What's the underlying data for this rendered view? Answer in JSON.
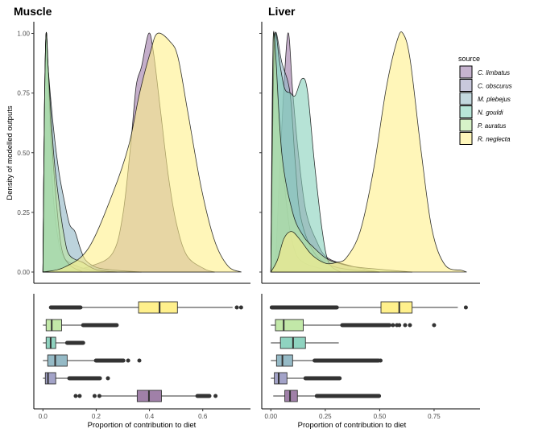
{
  "chart_data": [
    {
      "type": "area",
      "panel": "density",
      "title": "Muscle",
      "ylabel": "Density of modelled outputs",
      "xlim": [
        0,
        0.75
      ],
      "ylim": [
        0,
        1
      ],
      "yticks": [
        "0.00",
        "0.25",
        "0.50",
        "0.75",
        "1.00"
      ],
      "ytick_values": [
        0,
        0.25,
        0.5,
        0.75,
        1
      ],
      "series": [
        {
          "name": "C. limbatus",
          "x": [
            0.07,
            0.18,
            0.262,
            0.3,
            0.33,
            0.35,
            0.37,
            0.397,
            0.415,
            0.44,
            0.47,
            0.5,
            0.54,
            0.605,
            0.645
          ],
          "y": [
            0,
            0.025,
            0.08,
            0.24,
            0.54,
            0.78,
            0.86,
            1.0,
            0.92,
            0.69,
            0.41,
            0.21,
            0.07,
            0.014,
            0
          ]
        },
        {
          "name": "C. obscurus",
          "x": [
            0,
            0.005,
            0.012,
            0.02,
            0.03,
            0.04,
            0.06,
            0.08,
            0.1,
            0.14,
            0.2,
            0.25
          ],
          "y": [
            0,
            0.6,
            1,
            0.8,
            0.5,
            0.3,
            0.12,
            0.06,
            0.04,
            0.02,
            0.005,
            0
          ]
        },
        {
          "name": "M. plebejus",
          "x": [
            0,
            0.006,
            0.012,
            0.02,
            0.04,
            0.06,
            0.08,
            0.1,
            0.12,
            0.14,
            0.16,
            0.2,
            0.25,
            0.3,
            0.37
          ],
          "y": [
            0,
            0.7,
            1,
            0.85,
            0.6,
            0.42,
            0.3,
            0.2,
            0.17,
            0.1,
            0.05,
            0.02,
            0.01,
            0.005,
            0
          ]
        },
        {
          "name": "N. gouldi",
          "x": [
            0,
            0.006,
            0.012,
            0.02,
            0.03,
            0.05,
            0.07,
            0.1,
            0.15
          ],
          "y": [
            0,
            0.7,
            1,
            0.85,
            0.6,
            0.3,
            0.1,
            0.03,
            0
          ]
        },
        {
          "name": "P. auratus",
          "x": [
            0,
            0.006,
            0.012,
            0.02,
            0.04,
            0.06,
            0.08,
            0.1,
            0.15,
            0.2,
            0.28
          ],
          "y": [
            0,
            0.7,
            1,
            0.85,
            0.5,
            0.3,
            0.15,
            0.07,
            0.04,
            0.01,
            0
          ]
        },
        {
          "name": "R. neglecta",
          "x": [
            0,
            0.08,
            0.171,
            0.262,
            0.322,
            0.363,
            0.403,
            0.43,
            0.477,
            0.507,
            0.544,
            0.595,
            0.645,
            0.695,
            0.745
          ],
          "y": [
            0,
            0.02,
            0.1,
            0.33,
            0.53,
            0.75,
            0.92,
            1.0,
            0.966,
            0.9,
            0.67,
            0.35,
            0.13,
            0.025,
            0
          ]
        }
      ]
    },
    {
      "type": "area",
      "panel": "density",
      "title": "Liver",
      "xlim": [
        0,
        0.9
      ],
      "ylim": [
        0,
        1
      ],
      "series": [
        {
          "name": "C. limbatus",
          "x": [
            0.02,
            0.05,
            0.078,
            0.1,
            0.125,
            0.16,
            0.21,
            0.26,
            0.37,
            0.5
          ],
          "y": [
            0,
            0.6,
            1,
            0.76,
            0.51,
            0.26,
            0.13,
            0.06,
            0.025,
            0
          ]
        },
        {
          "name": "C. obscurus",
          "x": [
            0,
            0.006,
            0.012,
            0.02,
            0.04,
            0.07,
            0.1,
            0.15,
            0.3
          ],
          "y": [
            0,
            0.7,
            1,
            0.9,
            0.6,
            0.3,
            0.12,
            0.04,
            0
          ]
        },
        {
          "name": "M. plebejus",
          "x": [
            0,
            0.01,
            0.02,
            0.05,
            0.088,
            0.112,
            0.137,
            0.2,
            0.3,
            0.5
          ],
          "y": [
            0,
            0.7,
            1,
            0.88,
            0.75,
            0.46,
            0.23,
            0.08,
            0.02,
            0
          ]
        },
        {
          "name": "N. gouldi",
          "x": [
            0,
            0.01,
            0.02,
            0.04,
            0.063,
            0.09,
            0.112,
            0.143,
            0.168,
            0.2,
            0.235,
            0.266,
            0.32
          ],
          "y": [
            0,
            0.7,
            1,
            0.88,
            0.77,
            0.75,
            0.74,
            0.81,
            0.76,
            0.46,
            0.18,
            0.04,
            0
          ]
        },
        {
          "name": "P. auratus",
          "x": [
            0,
            0.008,
            0.015,
            0.05,
            0.1,
            0.15,
            0.2,
            0.25,
            0.3,
            0.4,
            0.65
          ],
          "y": [
            0,
            0.7,
            1,
            0.5,
            0.25,
            0.15,
            0.1,
            0.06,
            0.04,
            0.02,
            0
          ]
        },
        {
          "name": "R. neglecta",
          "x": [
            0,
            0.03,
            0.06,
            0.094,
            0.13,
            0.18,
            0.22,
            0.26,
            0.3,
            0.347,
            0.41,
            0.47,
            0.53,
            0.58,
            0.607,
            0.64,
            0.69,
            0.74,
            0.8,
            0.877,
            0.9
          ],
          "y": [
            0,
            0.05,
            0.14,
            0.17,
            0.14,
            0.08,
            0.05,
            0.035,
            0.04,
            0.06,
            0.17,
            0.42,
            0.77,
            0.97,
            1.0,
            0.89,
            0.51,
            0.18,
            0.03,
            0.007,
            0
          ]
        }
      ]
    },
    {
      "type": "box",
      "panel": "boxplot",
      "title": "Muscle",
      "xlabel": "Proportion of contribution to diet",
      "xticks": [
        "0.0",
        "0.2",
        "0.4",
        "0.6"
      ],
      "xtick_values": [
        0,
        0.2,
        0.4,
        0.6
      ],
      "series": [
        {
          "name": "R. neglecta",
          "whisker_low": 0.141,
          "q1": 0.359,
          "median": 0.438,
          "q3": 0.505,
          "whisker_high": 0.712,
          "outlier_ranges": [
            [
              0.03,
              0.141
            ]
          ],
          "outliers": [
            0.065,
            0.728,
            0.744
          ]
        },
        {
          "name": "P. auratus",
          "whisker_low": 0.0,
          "q1": 0.012,
          "median": 0.033,
          "q3": 0.07,
          "whisker_high": 0.151,
          "outlier_ranges": [
            [
              0.151,
              0.277
            ]
          ],
          "outliers": []
        },
        {
          "name": "N. gouldi",
          "whisker_low": 0.0,
          "q1": 0.012,
          "median": 0.029,
          "q3": 0.048,
          "whisker_high": 0.091,
          "outlier_ranges": [
            [
              0.091,
              0.151
            ]
          ],
          "outliers": []
        },
        {
          "name": "M. plebejus",
          "whisker_low": 0.0,
          "q1": 0.018,
          "median": 0.046,
          "q3": 0.091,
          "whisker_high": 0.199,
          "outlier_ranges": [
            [
              0.199,
              0.302
            ]
          ],
          "outliers": [
            0.32,
            0.362
          ]
        },
        {
          "name": "C. obscurus",
          "whisker_low": 0.0,
          "q1": 0.009,
          "median": 0.019,
          "q3": 0.048,
          "whisker_high": 0.099,
          "outlier_ranges": [
            [
              0.099,
              0.214
            ]
          ],
          "outliers": [
            0.244
          ]
        },
        {
          "name": "C. limbatus",
          "whisker_low": 0.214,
          "q1": 0.354,
          "median": 0.398,
          "q3": 0.445,
          "whisker_high": 0.575,
          "outlier_ranges": [
            [
              0.58,
              0.625
            ]
          ],
          "outliers": [
            0.123,
            0.138,
            0.194,
            0.212,
            0.648
          ]
        }
      ]
    },
    {
      "type": "box",
      "panel": "boxplot",
      "title": "Liver",
      "xlabel": "Proportion of contribution to diet",
      "xticks": [
        "0.00",
        "0.25",
        "0.50",
        "0.75"
      ],
      "xtick_values": [
        0,
        0.25,
        0.5,
        0.75
      ],
      "series": [
        {
          "name": "R. neglecta",
          "whisker_low": 0.303,
          "q1": 0.506,
          "median": 0.59,
          "q3": 0.649,
          "whisker_high": 0.859,
          "outlier_ranges": [
            [
              0.004,
              0.303
            ]
          ],
          "outliers": [
            0.896
          ]
        },
        {
          "name": "P. auratus",
          "whisker_low": 0.0,
          "q1": 0.021,
          "median": 0.059,
          "q3": 0.149,
          "whisker_high": 0.328,
          "outlier_ranges": [
            [
              0.328,
              0.545
            ]
          ],
          "outliers": [
            0.561,
            0.579,
            0.59,
            0.617,
            0.639,
            0.75
          ]
        },
        {
          "name": "N. gouldi",
          "whisker_low": 0.0,
          "q1": 0.044,
          "median": 0.102,
          "q3": 0.159,
          "whisker_high": 0.312,
          "outlier_ranges": [],
          "outliers": []
        },
        {
          "name": "M. plebejus",
          "whisker_low": 0.0,
          "q1": 0.026,
          "median": 0.053,
          "q3": 0.1,
          "whisker_high": 0.201,
          "outlier_ranges": [
            [
              0.201,
              0.495
            ]
          ],
          "outliers": [
            0.504
          ]
        },
        {
          "name": "C. obscurus",
          "whisker_low": 0.0,
          "q1": 0.016,
          "median": 0.036,
          "q3": 0.074,
          "whisker_high": 0.159,
          "outlier_ranges": [
            [
              0.159,
              0.316
            ]
          ],
          "outliers": []
        },
        {
          "name": "C. limbatus",
          "whisker_low": 0.011,
          "q1": 0.064,
          "median": 0.088,
          "q3": 0.122,
          "whisker_high": 0.211,
          "outlier_ranges": [
            [
              0.211,
              0.497
            ]
          ],
          "outliers": []
        }
      ]
    }
  ],
  "legend": {
    "title": "source",
    "placement": "right",
    "items": [
      {
        "label": "C. limbatus",
        "color": "#c6b3cf"
      },
      {
        "label": "C. obscurus",
        "color": "#c8c8dc"
      },
      {
        "label": "M. plebejus",
        "color": "#c3d8de"
      },
      {
        "label": "N. gouldi",
        "color": "#b8e6d8"
      },
      {
        "label": "P. auratus",
        "color": "#d7f2c8"
      },
      {
        "label": "R. neglecta",
        "color": "#fff7bb"
      }
    ]
  },
  "colors": {
    "C. limbatus": "#9c78a6",
    "C. obscurus": "#9e9ec6",
    "M. plebejus": "#8fb6c4",
    "N. gouldi": "#86d1bb",
    "P. auratus": "#bce6a0",
    "R. neglecta": "#fff08a"
  },
  "box_fill": {
    "C. limbatus": "#a080a8",
    "C. obscurus": "#a3a3c8",
    "M. plebejus": "#95bac6",
    "N. gouldi": "#8fd3c0",
    "P. auratus": "#c2e8a8",
    "R. neglecta": "#fff08c"
  }
}
